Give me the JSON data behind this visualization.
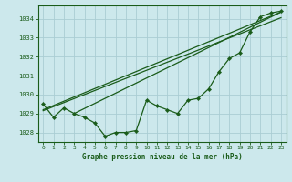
{
  "title": "Graphe pression niveau de la mer (hPa)",
  "bg_color": "#cce8ec",
  "grid_color": "#aacdd4",
  "line_color": "#1a5c1a",
  "text_color": "#1a5c1a",
  "xlim": [
    -0.5,
    23.5
  ],
  "ylim": [
    1027.5,
    1034.7
  ],
  "yticks": [
    1028,
    1029,
    1030,
    1031,
    1032,
    1033,
    1034
  ],
  "xticks": [
    0,
    1,
    2,
    3,
    4,
    5,
    6,
    7,
    8,
    9,
    10,
    11,
    12,
    13,
    14,
    15,
    16,
    17,
    18,
    19,
    20,
    21,
    22,
    23
  ],
  "main_data": [
    1029.5,
    1028.8,
    1029.3,
    1029.0,
    1028.8,
    1028.5,
    1027.8,
    1028.0,
    1028.0,
    1028.1,
    1029.7,
    1029.4,
    1029.2,
    1029.0,
    1029.7,
    1029.8,
    1030.3,
    1031.2,
    1031.9,
    1032.2,
    1033.3,
    1034.1,
    1034.3,
    1034.4
  ],
  "trend_line1_x": [
    0,
    23
  ],
  "trend_line1_y": [
    1029.2,
    1034.35
  ],
  "trend_line2_x": [
    0,
    23
  ],
  "trend_line2_y": [
    1029.15,
    1034.05
  ],
  "trend_line3_x": [
    3,
    23
  ],
  "trend_line3_y": [
    1029.0,
    1034.35
  ]
}
